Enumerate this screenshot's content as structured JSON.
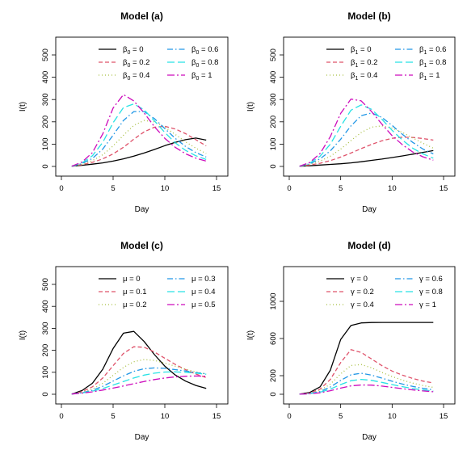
{
  "chart_data": [
    {
      "id": "a",
      "type": "line",
      "title": "Model (a)",
      "xlabel": "Day",
      "ylabel": "I(t)",
      "xlim": [
        0,
        15
      ],
      "ylim": [
        0,
        550
      ],
      "xticks": [
        0,
        5,
        10,
        15
      ],
      "yticks": [
        0,
        100,
        200,
        300,
        400,
        500
      ],
      "legend": {
        "placement": "top-right",
        "columns": 2
      },
      "x": [
        1,
        2,
        3,
        4,
        5,
        6,
        7,
        8,
        9,
        10,
        11,
        12,
        13,
        14
      ],
      "series": [
        {
          "symbol": "β",
          "sub": "0",
          "value": "0",
          "color": "#000000",
          "dash": "",
          "values": [
            1,
            5,
            10,
            16,
            24,
            34,
            46,
            60,
            76,
            93,
            108,
            120,
            127,
            118
          ]
        },
        {
          "symbol": "β",
          "sub": "0",
          "value": "0.2",
          "color": "#df536b",
          "dash": "5,3",
          "values": [
            1,
            8,
            18,
            34,
            56,
            86,
            122,
            155,
            176,
            180,
            168,
            147,
            120,
            92
          ]
        },
        {
          "symbol": "β",
          "sub": "0",
          "value": "0.4",
          "color": "#a8bf42",
          "dash": "1,3",
          "values": [
            1,
            10,
            26,
            52,
            92,
            140,
            184,
            206,
            200,
            176,
            144,
            110,
            82,
            58
          ]
        },
        {
          "symbol": "β",
          "sub": "0",
          "value": "0.6",
          "color": "#2297e6",
          "dash": "7,3,1.5,3",
          "values": [
            1,
            13,
            36,
            78,
            140,
            206,
            246,
            246,
            214,
            170,
            126,
            90,
            62,
            42
          ]
        },
        {
          "symbol": "β",
          "sub": "0",
          "value": "0.8",
          "color": "#28e2e5",
          "dash": "9,4",
          "values": [
            1,
            16,
            48,
            108,
            196,
            264,
            280,
            254,
            204,
            152,
            106,
            72,
            48,
            31
          ]
        },
        {
          "symbol": "β",
          "sub": "0",
          "value": "1",
          "color": "#cd0bbc",
          "dash": "9,3,2,3",
          "values": [
            1,
            20,
            62,
            146,
            262,
            322,
            294,
            240,
            178,
            126,
            86,
            57,
            37,
            24
          ]
        }
      ]
    },
    {
      "id": "b",
      "type": "line",
      "title": "Model (b)",
      "xlabel": "Day",
      "ylabel": "I(t)",
      "xlim": [
        0,
        15
      ],
      "ylim": [
        0,
        550
      ],
      "xticks": [
        0,
        5,
        10,
        15
      ],
      "yticks": [
        0,
        100,
        200,
        300,
        400,
        500
      ],
      "legend": {
        "placement": "top-right",
        "columns": 2
      },
      "x": [
        1,
        2,
        3,
        4,
        5,
        6,
        7,
        8,
        9,
        10,
        11,
        12,
        13,
        14
      ],
      "series": [
        {
          "symbol": "β",
          "sub": "1",
          "value": "0",
          "color": "#000000",
          "dash": "",
          "values": [
            1,
            3,
            6,
            9,
            12,
            16,
            21,
            27,
            33,
            40,
            47,
            55,
            63,
            71
          ]
        },
        {
          "symbol": "β",
          "sub": "1",
          "value": "0.2",
          "color": "#df536b",
          "dash": "5,3",
          "values": [
            1,
            6,
            14,
            26,
            42,
            60,
            80,
            99,
            115,
            126,
            131,
            130,
            125,
            118
          ]
        },
        {
          "symbol": "β",
          "sub": "1",
          "value": "0.4",
          "color": "#a8bf42",
          "dash": "1,3",
          "values": [
            1,
            9,
            24,
            46,
            78,
            116,
            152,
            176,
            182,
            172,
            152,
            128,
            104,
            82
          ]
        },
        {
          "symbol": "β",
          "sub": "1",
          "value": "0.6",
          "color": "#2297e6",
          "dash": "7,3,1.5,3",
          "values": [
            1,
            12,
            34,
            70,
            122,
            182,
            228,
            240,
            220,
            184,
            144,
            108,
            78,
            56
          ]
        },
        {
          "symbol": "β",
          "sub": "1",
          "value": "0.8",
          "color": "#28e2e5",
          "dash": "9,4",
          "values": [
            1,
            15,
            46,
            100,
            180,
            252,
            276,
            256,
            212,
            162,
            118,
            82,
            56,
            37
          ]
        },
        {
          "symbol": "β",
          "sub": "1",
          "value": "1",
          "color": "#cd0bbc",
          "dash": "9,3,2,3",
          "values": [
            1,
            18,
            58,
            134,
            238,
            302,
            294,
            246,
            190,
            138,
            97,
            65,
            43,
            28
          ]
        }
      ]
    },
    {
      "id": "c",
      "type": "line",
      "title": "Model (c)",
      "xlabel": "Day",
      "ylabel": "I(t)",
      "xlim": [
        0,
        15
      ],
      "ylim": [
        0,
        550
      ],
      "xticks": [
        0,
        5,
        10,
        15
      ],
      "yticks": [
        0,
        100,
        200,
        300,
        400,
        500
      ],
      "legend": {
        "placement": "top-right",
        "columns": 2
      },
      "x": [
        1,
        2,
        3,
        4,
        5,
        6,
        7,
        8,
        9,
        10,
        11,
        12,
        13,
        14
      ],
      "series": [
        {
          "symbol": "μ",
          "sub": "",
          "value": "0",
          "color": "#000000",
          "dash": "",
          "values": [
            1,
            17,
            50,
            114,
            208,
            278,
            286,
            240,
            180,
            128,
            88,
            60,
            40,
            27
          ]
        },
        {
          "symbol": "μ",
          "sub": "",
          "value": "0.1",
          "color": "#df536b",
          "dash": "5,3",
          "values": [
            1,
            12,
            34,
            74,
            130,
            186,
            216,
            214,
            192,
            164,
            136,
            112,
            92,
            76
          ]
        },
        {
          "symbol": "μ",
          "sub": "",
          "value": "0.2",
          "color": "#a8bf42",
          "dash": "1,3",
          "values": [
            1,
            9,
            24,
            50,
            86,
            122,
            148,
            158,
            154,
            142,
            128,
            114,
            102,
            92
          ]
        },
        {
          "symbol": "μ",
          "sub": "",
          "value": "0.3",
          "color": "#2297e6",
          "dash": "7,3,1.5,3",
          "values": [
            1,
            7,
            18,
            36,
            60,
            84,
            104,
            116,
            120,
            118,
            112,
            106,
            99,
            93
          ]
        },
        {
          "symbol": "μ",
          "sub": "",
          "value": "0.4",
          "color": "#28e2e5",
          "dash": "9,4",
          "values": [
            1,
            6,
            14,
            26,
            42,
            58,
            74,
            87,
            96,
            101,
            102,
            100,
            96,
            91
          ]
        },
        {
          "symbol": "μ",
          "sub": "",
          "value": "0.5",
          "color": "#cd0bbc",
          "dash": "9,3,2,3",
          "values": [
            1,
            5,
            11,
            19,
            28,
            38,
            48,
            58,
            67,
            74,
            79,
            82,
            83,
            82
          ]
        }
      ]
    },
    {
      "id": "d",
      "type": "line",
      "title": "Model (d)",
      "xlabel": "Day",
      "ylabel": "I(t)",
      "xlim": [
        0,
        15
      ],
      "ylim": [
        0,
        1200
      ],
      "xticks": [
        0,
        5,
        10,
        15
      ],
      "yticks": [
        0,
        200,
        600,
        1000
      ],
      "legend": {
        "placement": "top-right",
        "columns": 2
      },
      "x": [
        1,
        2,
        3,
        4,
        5,
        6,
        7,
        8,
        9,
        10,
        11,
        12,
        13,
        14
      ],
      "series": [
        {
          "symbol": "γ",
          "sub": "",
          "value": "0",
          "color": "#000000",
          "dash": "",
          "values": [
            1,
            20,
            80,
            260,
            590,
            740,
            768,
            772,
            773,
            773,
            773,
            773,
            773,
            773
          ]
        },
        {
          "symbol": "γ",
          "sub": "",
          "value": "0.2",
          "color": "#df536b",
          "dash": "5,3",
          "values": [
            1,
            14,
            56,
            160,
            342,
            480,
            450,
            380,
            308,
            250,
            205,
            170,
            142,
            122
          ]
        },
        {
          "symbol": "γ",
          "sub": "",
          "value": "0.4",
          "color": "#a8bf42",
          "dash": "1,3",
          "values": [
            1,
            10,
            40,
            110,
            220,
            310,
            320,
            284,
            236,
            190,
            152,
            120,
            94,
            74
          ]
        },
        {
          "symbol": "γ",
          "sub": "",
          "value": "0.6",
          "color": "#2297e6",
          "dash": "7,3,1.5,3",
          "values": [
            1,
            8,
            30,
            78,
            150,
            210,
            226,
            206,
            174,
            140,
            110,
            84,
            64,
            48
          ]
        },
        {
          "symbol": "γ",
          "sub": "",
          "value": "0.8",
          "color": "#28e2e5",
          "dash": "9,4",
          "values": [
            1,
            6,
            22,
            56,
            104,
            146,
            160,
            150,
            128,
            104,
            82,
            62,
            47,
            35
          ]
        },
        {
          "symbol": "γ",
          "sub": "",
          "value": "1",
          "color": "#cd0bbc",
          "dash": "9,3,2,3",
          "values": [
            1,
            5,
            16,
            38,
            66,
            90,
            100,
            98,
            88,
            74,
            60,
            47,
            36,
            27
          ]
        }
      ]
    }
  ]
}
